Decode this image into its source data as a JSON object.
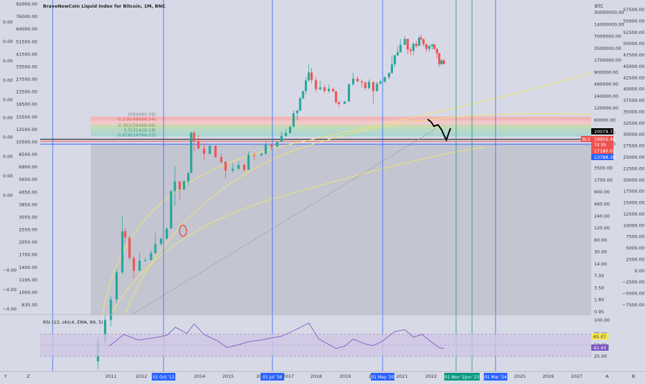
{
  "header": {
    "title": "BraveNewCoin Liquid Index for Bitcoin, 1M, BNC"
  },
  "colors": {
    "background": "#d7dae6",
    "up_candle": "#26a69a",
    "down_candle": "#ef5350",
    "vline_blue": "#2962ff",
    "vline_green": "#089981",
    "rsi_line": "#7e57c2",
    "channel": "#f2e36b"
  },
  "left_axis_a": {
    "labels": [
      "0.00",
      "0.00",
      "0.00",
      "0.00",
      "0.00",
      "0.00",
      "0.00",
      "0.00",
      "0.00",
      "0.00",
      "−0.00",
      "−0.00",
      "−0.00"
    ]
  },
  "left_axis_b": {
    "labels": [
      "92000.00",
      "76000.00",
      "64000.00",
      "51500.00",
      "41500.00",
      "33500.00",
      "27500.00",
      "22500.00",
      "18500.00",
      "15500.00",
      "12500.00",
      "10500.00",
      "8500.00",
      "6900.00",
      "5650.00",
      "4650.00",
      "3850.00",
      "3050.00",
      "2550.00",
      "2050.00",
      "1700.00",
      "1400.00",
      "1195.00",
      "1000.00",
      "835.00"
    ]
  },
  "right_axis_log": {
    "unit": "BTC",
    "labels": [
      "30000000.00",
      "14000000.00",
      "7000000.00",
      "3500000.00",
      "1700000.00",
      "900000.00",
      "460000.00",
      "240000.00",
      "120000.00",
      "60000.00",
      "30000.00",
      "14000.00",
      "7000.00",
      "3500.00",
      "1700.00",
      "900.00",
      "460.00",
      "240.00",
      "120.00",
      "60.00",
      "30.00",
      "14.00",
      "7.00",
      "3.50",
      "1.80",
      "0.95"
    ]
  },
  "right_axis_usd": {
    "labels": [
      "57500.00",
      "55000.00",
      "52500.00",
      "50000.00",
      "47500.00",
      "45000.00",
      "42500.00",
      "40000.00",
      "37500.00",
      "35000.00",
      "32500.00",
      "30000.00",
      "27500.00",
      "25000.00",
      "22500.00",
      "20000.00",
      "17500.00",
      "15000.00",
      "12500.00",
      "10000.00",
      "7500.00",
      "5000.00",
      "2500.00",
      "0.00",
      "−2500.00",
      "−5000.00",
      "−7500.00"
    ]
  },
  "price_tags": {
    "last": "20079.72",
    "close": "19955.46",
    "countdown": "7d 3h",
    "low": "17180.01",
    "support": "13788.36",
    "blx": "BLX"
  },
  "fib": {
    "labels": [
      "0(64940.39)",
      "0.236(48698.04)",
      "0.382(39468.66)",
      "0.5(31428.18)",
      "0.618(24769.03)"
    ]
  },
  "x_axis": {
    "labels": [
      "Y",
      "Z",
      "2011",
      "2012",
      "2014",
      "2015",
      "2016",
      "2017",
      "2018",
      "2019",
      "2020",
      "2021",
      "2022",
      "2025",
      "2026",
      "2027",
      "A",
      "B"
    ],
    "markers": [
      "01 Oct '12",
      "01 Jul '16",
      "01 May '20",
      "01 Nov '22",
      "Jun '23",
      "01 Mar '24"
    ]
  },
  "rsi": {
    "label": "RSI (13, ohlc4, EMA, 89, 5)",
    "scale": [
      "100.00",
      "75.00",
      "50.00",
      "25.00"
    ],
    "value_a": "65.07",
    "value_b": "42.43"
  },
  "chart_data": {
    "type": "candlestick",
    "title": "BraveNewCoin Liquid Index for Bitcoin, 1M, BNC",
    "x_label": "",
    "y_label": "",
    "y_scale": "log",
    "y_unit": "USD",
    "y_range": [
      0.5,
      300000
    ],
    "x_range": [
      2010.0,
      2027.8
    ],
    "series": [
      {
        "t": 2010.6,
        "o": 0.07,
        "h": 0.19,
        "l": 0.05,
        "c": 0.16
      },
      {
        "t": 2010.85,
        "o": 0.16,
        "h": 0.5,
        "l": 0.14,
        "c": 0.4
      },
      {
        "t": 2011.05,
        "o": 0.4,
        "h": 1.1,
        "l": 0.3,
        "c": 0.95
      },
      {
        "t": 2011.25,
        "o": 0.95,
        "h": 3.5,
        "l": 0.8,
        "c": 3.0
      },
      {
        "t": 2011.45,
        "o": 3.0,
        "h": 32,
        "l": 2.8,
        "c": 17
      },
      {
        "t": 2011.55,
        "o": 17,
        "h": 20,
        "l": 10,
        "c": 13
      },
      {
        "t": 2011.7,
        "o": 13,
        "h": 14,
        "l": 5,
        "c": 5.5
      },
      {
        "t": 2011.85,
        "o": 5.5,
        "h": 6,
        "l": 2.3,
        "c": 3.2
      },
      {
        "t": 2012.05,
        "o": 3.2,
        "h": 7,
        "l": 3.5,
        "c": 4.9
      },
      {
        "t": 2012.25,
        "o": 4.9,
        "h": 5.5,
        "l": 4.7,
        "c": 5.0
      },
      {
        "t": 2012.45,
        "o": 5.0,
        "h": 7.5,
        "l": 4.9,
        "c": 6.8
      },
      {
        "t": 2012.6,
        "o": 6.8,
        "h": 16,
        "l": 6.5,
        "c": 10
      },
      {
        "t": 2012.8,
        "o": 10,
        "h": 13,
        "l": 9.5,
        "c": 12.5
      },
      {
        "t": 2013.0,
        "o": 12.5,
        "h": 20,
        "l": 12,
        "c": 19
      },
      {
        "t": 2013.15,
        "o": 19,
        "h": 100,
        "l": 19,
        "c": 93
      },
      {
        "t": 2013.28,
        "o": 93,
        "h": 266,
        "l": 50,
        "c": 140
      },
      {
        "t": 2013.45,
        "o": 140,
        "h": 140,
        "l": 65,
        "c": 100
      },
      {
        "t": 2013.6,
        "o": 100,
        "h": 150,
        "l": 95,
        "c": 140
      },
      {
        "t": 2013.75,
        "o": 140,
        "h": 210,
        "l": 120,
        "c": 200
      },
      {
        "t": 2013.85,
        "o": 200,
        "h": 1150,
        "l": 200,
        "c": 1100
      },
      {
        "t": 2013.95,
        "o": 1100,
        "h": 1200,
        "l": 500,
        "c": 750
      },
      {
        "t": 2014.1,
        "o": 750,
        "h": 1000,
        "l": 550,
        "c": 560
      },
      {
        "t": 2014.3,
        "o": 560,
        "h": 700,
        "l": 350,
        "c": 450
      },
      {
        "t": 2014.5,
        "o": 450,
        "h": 680,
        "l": 440,
        "c": 630
      },
      {
        "t": 2014.7,
        "o": 630,
        "h": 650,
        "l": 380,
        "c": 390
      },
      {
        "t": 2014.9,
        "o": 390,
        "h": 460,
        "l": 300,
        "c": 320
      },
      {
        "t": 2015.05,
        "o": 320,
        "h": 330,
        "l": 160,
        "c": 220
      },
      {
        "t": 2015.3,
        "o": 220,
        "h": 300,
        "l": 200,
        "c": 240
      },
      {
        "t": 2015.5,
        "o": 240,
        "h": 320,
        "l": 220,
        "c": 280
      },
      {
        "t": 2015.7,
        "o": 280,
        "h": 300,
        "l": 210,
        "c": 230
      },
      {
        "t": 2015.85,
        "o": 230,
        "h": 500,
        "l": 230,
        "c": 430
      },
      {
        "t": 2016.05,
        "o": 430,
        "h": 470,
        "l": 350,
        "c": 420
      },
      {
        "t": 2016.3,
        "o": 420,
        "h": 470,
        "l": 400,
        "c": 450
      },
      {
        "t": 2016.45,
        "o": 450,
        "h": 780,
        "l": 440,
        "c": 680
      },
      {
        "t": 2016.65,
        "o": 680,
        "h": 690,
        "l": 530,
        "c": 610
      },
      {
        "t": 2016.85,
        "o": 610,
        "h": 760,
        "l": 600,
        "c": 740
      },
      {
        "t": 2017.0,
        "o": 740,
        "h": 1150,
        "l": 750,
        "c": 960
      },
      {
        "t": 2017.15,
        "o": 960,
        "h": 1300,
        "l": 900,
        "c": 1080
      },
      {
        "t": 2017.3,
        "o": 1080,
        "h": 1500,
        "l": 1070,
        "c": 1400
      },
      {
        "t": 2017.42,
        "o": 1400,
        "h": 2800,
        "l": 1400,
        "c": 2500
      },
      {
        "t": 2017.55,
        "o": 2500,
        "h": 2900,
        "l": 1850,
        "c": 2800
      },
      {
        "t": 2017.65,
        "o": 2800,
        "h": 5000,
        "l": 2700,
        "c": 4700
      },
      {
        "t": 2017.75,
        "o": 4700,
        "h": 6400,
        "l": 4500,
        "c": 6400
      },
      {
        "t": 2017.85,
        "o": 6400,
        "h": 11400,
        "l": 5500,
        "c": 10000
      },
      {
        "t": 2017.95,
        "o": 10000,
        "h": 19800,
        "l": 9500,
        "c": 14000
      },
      {
        "t": 2018.05,
        "o": 14000,
        "h": 17000,
        "l": 9000,
        "c": 10200
      },
      {
        "t": 2018.2,
        "o": 10200,
        "h": 11700,
        "l": 6000,
        "c": 6900
      },
      {
        "t": 2018.35,
        "o": 6900,
        "h": 9900,
        "l": 6500,
        "c": 7500
      },
      {
        "t": 2018.5,
        "o": 7500,
        "h": 8500,
        "l": 5800,
        "c": 6400
      },
      {
        "t": 2018.65,
        "o": 6400,
        "h": 8400,
        "l": 5900,
        "c": 7000
      },
      {
        "t": 2018.8,
        "o": 7000,
        "h": 7400,
        "l": 6200,
        "c": 6300
      },
      {
        "t": 2018.9,
        "o": 6300,
        "h": 6500,
        "l": 3600,
        "c": 4000
      },
      {
        "t": 2019.0,
        "o": 4000,
        "h": 4200,
        "l": 3200,
        "c": 3700
      },
      {
        "t": 2019.2,
        "o": 3700,
        "h": 4200,
        "l": 3700,
        "c": 4100
      },
      {
        "t": 2019.35,
        "o": 4100,
        "h": 8700,
        "l": 4100,
        "c": 8500
      },
      {
        "t": 2019.5,
        "o": 8500,
        "h": 13800,
        "l": 8000,
        "c": 10800
      },
      {
        "t": 2019.65,
        "o": 10800,
        "h": 12000,
        "l": 9300,
        "c": 9600
      },
      {
        "t": 2019.8,
        "o": 9600,
        "h": 10500,
        "l": 7400,
        "c": 9200
      },
      {
        "t": 2019.92,
        "o": 9200,
        "h": 9500,
        "l": 6500,
        "c": 7200
      },
      {
        "t": 2020.05,
        "o": 7200,
        "h": 10500,
        "l": 6900,
        "c": 9400
      },
      {
        "t": 2020.2,
        "o": 9400,
        "h": 9200,
        "l": 3800,
        "c": 6400
      },
      {
        "t": 2020.33,
        "o": 6400,
        "h": 9500,
        "l": 6200,
        "c": 8700
      },
      {
        "t": 2020.45,
        "o": 8700,
        "h": 10400,
        "l": 8600,
        "c": 9500
      },
      {
        "t": 2020.6,
        "o": 9500,
        "h": 12000,
        "l": 9000,
        "c": 11400
      },
      {
        "t": 2020.75,
        "o": 11400,
        "h": 14000,
        "l": 10500,
        "c": 13800
      },
      {
        "t": 2020.85,
        "o": 13800,
        "h": 29000,
        "l": 13200,
        "c": 19700
      },
      {
        "t": 2020.95,
        "o": 19700,
        "h": 29300,
        "l": 17500,
        "c": 29000
      },
      {
        "t": 2021.05,
        "o": 29000,
        "h": 42000,
        "l": 28000,
        "c": 33000
      },
      {
        "t": 2021.15,
        "o": 33000,
        "h": 58000,
        "l": 32500,
        "c": 45000
      },
      {
        "t": 2021.3,
        "o": 45000,
        "h": 65000,
        "l": 47000,
        "c": 58000
      },
      {
        "t": 2021.4,
        "o": 58000,
        "h": 59000,
        "l": 30000,
        "c": 37000
      },
      {
        "t": 2021.5,
        "o": 37000,
        "h": 41000,
        "l": 29000,
        "c": 35000
      },
      {
        "t": 2021.6,
        "o": 35000,
        "h": 50000,
        "l": 29000,
        "c": 47000
      },
      {
        "t": 2021.7,
        "o": 47000,
        "h": 53000,
        "l": 40000,
        "c": 43000
      },
      {
        "t": 2021.8,
        "o": 43000,
        "h": 67000,
        "l": 43000,
        "c": 61000
      },
      {
        "t": 2021.87,
        "o": 61000,
        "h": 69000,
        "l": 56000,
        "c": 57000
      },
      {
        "t": 2021.95,
        "o": 57000,
        "h": 59000,
        "l": 42000,
        "c": 46000
      },
      {
        "t": 2022.05,
        "o": 46000,
        "h": 48000,
        "l": 33000,
        "c": 38000
      },
      {
        "t": 2022.15,
        "o": 38000,
        "h": 45000,
        "l": 34000,
        "c": 43000
      },
      {
        "t": 2022.25,
        "o": 43000,
        "h": 48000,
        "l": 37000,
        "c": 45500
      },
      {
        "t": 2022.33,
        "o": 45500,
        "h": 47000,
        "l": 37500,
        "c": 37700
      },
      {
        "t": 2022.42,
        "o": 37700,
        "h": 40000,
        "l": 25000,
        "c": 31800
      },
      {
        "t": 2022.5,
        "o": 31800,
        "h": 32000,
        "l": 17500,
        "c": 20000
      },
      {
        "t": 2022.58,
        "o": 20000,
        "h": 24600,
        "l": 18800,
        "c": 23300
      },
      {
        "t": 2022.66,
        "o": 23300,
        "h": 25200,
        "l": 19600,
        "c": 20100
      }
    ],
    "rsi": {
      "type": "line",
      "range": [
        0,
        100
      ],
      "points": [
        [
          2011.0,
          45
        ],
        [
          2011.5,
          70
        ],
        [
          2012.0,
          58
        ],
        [
          2012.5,
          62
        ],
        [
          2013.0,
          68
        ],
        [
          2013.3,
          85
        ],
        [
          2013.7,
          72
        ],
        [
          2013.95,
          92
        ],
        [
          2014.3,
          70
        ],
        [
          2014.8,
          55
        ],
        [
          2015.1,
          42
        ],
        [
          2015.5,
          48
        ],
        [
          2015.9,
          55
        ],
        [
          2016.3,
          58
        ],
        [
          2016.6,
          62
        ],
        [
          2017.0,
          66
        ],
        [
          2017.5,
          80
        ],
        [
          2017.95,
          94
        ],
        [
          2018.3,
          60
        ],
        [
          2018.9,
          40
        ],
        [
          2019.2,
          45
        ],
        [
          2019.5,
          60
        ],
        [
          2019.9,
          50
        ],
        [
          2020.2,
          46
        ],
        [
          2020.5,
          55
        ],
        [
          2020.95,
          76
        ],
        [
          2021.3,
          80
        ],
        [
          2021.6,
          64
        ],
        [
          2021.9,
          70
        ],
        [
          2022.2,
          55
        ],
        [
          2022.5,
          42
        ],
        [
          2022.66,
          40
        ]
      ]
    },
    "channel_curves": true,
    "fib_levels": [
      64940.39,
      48698.04,
      39468.66,
      31428.18,
      24769.03
    ],
    "horizontal_levels": [
      19955.46,
      17180.01,
      13788.36
    ],
    "vertical_markers": [
      "01 Oct '12",
      "01 Jul '16",
      "01 May '20",
      "01 Nov '22",
      "Jun '23",
      "01 Mar '24"
    ],
    "grid": false,
    "legend": "none"
  }
}
